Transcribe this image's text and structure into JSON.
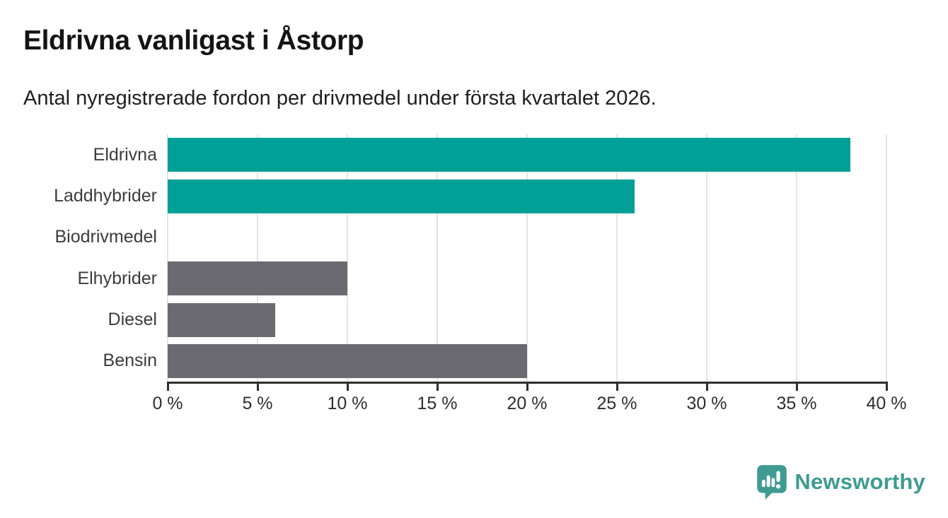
{
  "header": {
    "title": "Eldrivna vanligast i Åstorp",
    "subtitle": "Antal nyregistrerade fordon per drivmedel under första kvartalet 2026."
  },
  "chart_data": {
    "type": "bar",
    "orientation": "horizontal",
    "title": "Eldrivna vanligast i Åstorp",
    "subtitle": "Antal nyregistrerade fordon per drivmedel under första kvartalet 2026.",
    "categories": [
      "Eldrivna",
      "Laddhybrider",
      "Biodrivmedel",
      "Elhybrider",
      "Diesel",
      "Bensin"
    ],
    "values": [
      38,
      26,
      0,
      10,
      6,
      20
    ],
    "unit": "%",
    "xlabel": "",
    "ylabel": "",
    "xlim": [
      0,
      40
    ],
    "x_ticks": [
      0,
      5,
      10,
      15,
      20,
      25,
      30,
      35,
      40
    ],
    "x_tick_labels": [
      "0 %",
      "5 %",
      "10 %",
      "15 %",
      "20 %",
      "25 %",
      "30 %",
      "35 %",
      "40 %"
    ],
    "bar_color_keys": [
      "teal",
      "teal",
      "none",
      "gray",
      "gray",
      "gray"
    ],
    "colors": {
      "teal": "#00A096",
      "gray": "#6A6A70"
    },
    "grid": "vertical-gridlines-on",
    "legend": "none",
    "grid_color": "#e4e4e4",
    "axis_color": "#2e2e2e"
  },
  "footer": {
    "brand": "Newsworthy",
    "brand_color": "#3E9B92"
  }
}
